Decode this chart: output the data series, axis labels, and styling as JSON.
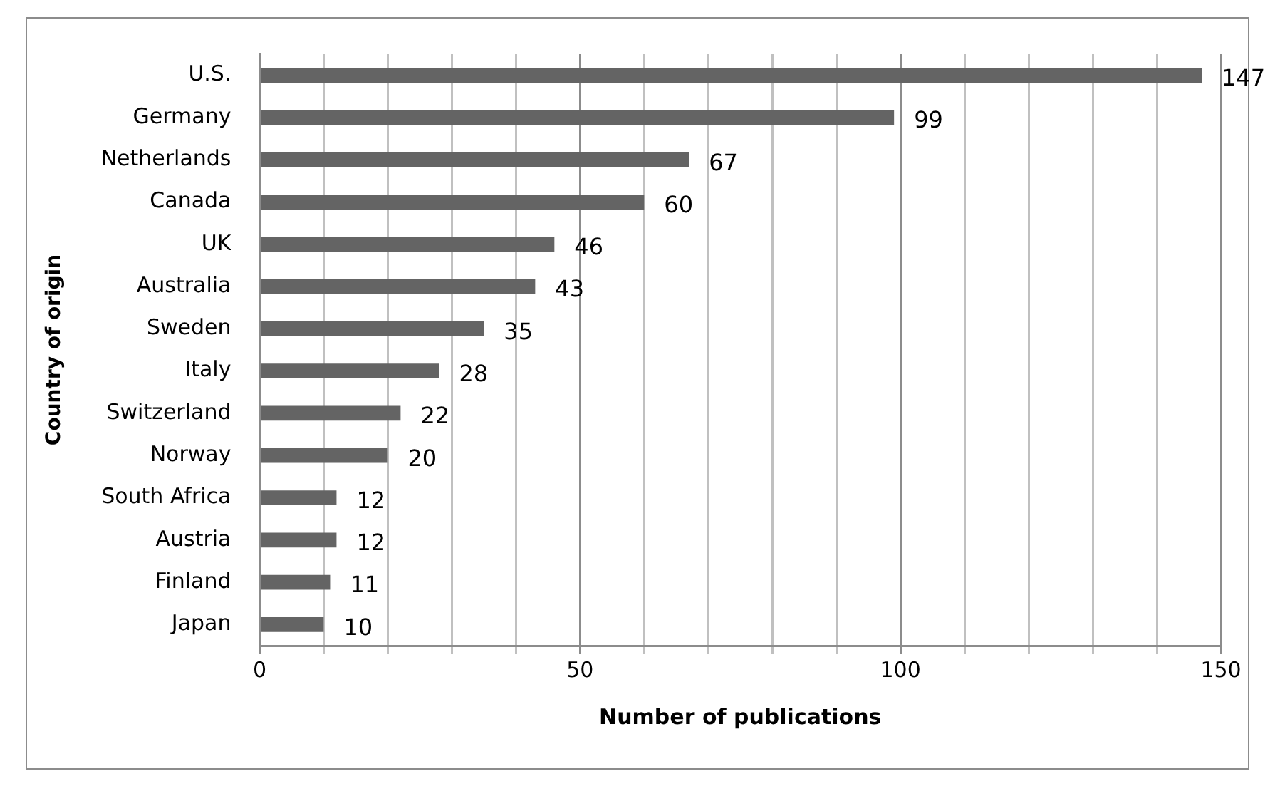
{
  "chart_data": {
    "type": "bar",
    "orientation": "horizontal",
    "xlabel": "Number of publications",
    "ylabel": "Country of origin",
    "categories": [
      "U.S.",
      "Germany",
      "Netherlands",
      "Canada",
      "UK",
      "Australia",
      "Sweden",
      "Italy",
      "Switzerland",
      "Norway",
      "South Africa",
      "Austria",
      "Finland",
      "Japan"
    ],
    "values": [
      147,
      99,
      67,
      60,
      46,
      43,
      35,
      28,
      22,
      20,
      12,
      12,
      11,
      10
    ],
    "color": "#646464",
    "xlim": [
      0,
      150
    ],
    "xticks": [
      0,
      {
        "value": 10,
        "label": null
      },
      {
        "value": 20,
        "label": null
      },
      {
        "value": 30,
        "label": null
      },
      {
        "value": 40,
        "label": null
      },
      50,
      {
        "value": 60,
        "label": null
      },
      {
        "value": 70,
        "label": null
      },
      {
        "value": 80,
        "label": null
      },
      {
        "value": 90,
        "label": null
      },
      100,
      {
        "value": 110,
        "label": null
      },
      {
        "value": 120,
        "label": null
      },
      {
        "value": 130,
        "label": null
      },
      {
        "value": 140,
        "label": null
      },
      150
    ],
    "grid": "x",
    "data_labels": true,
    "legend": false
  }
}
